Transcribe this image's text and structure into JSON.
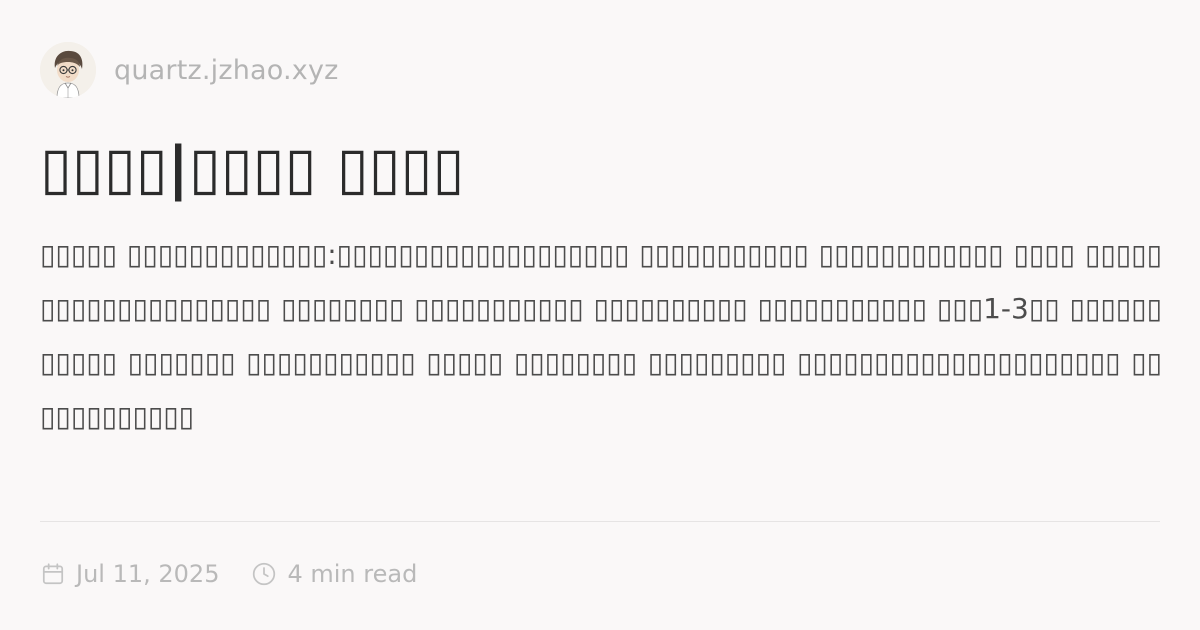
{
  "site": {
    "url": "quartz.jzhao.xyz",
    "avatar_icon": "avatar-sketch-person"
  },
  "post": {
    "title": "▯▯▯▯|▯▯▯▯ ▯▯▯▯",
    "excerpt": "▯▯▯▯▯ ▯▯▯▯▯▯▯▯▯▯▯▯▯:▯▯▯▯▯▯▯▯▯▯▯▯▯▯▯▯▯▯▯ ▯▯▯▯▯▯▯▯▯▯▯ ▯▯▯▯▯▯▯▯▯▯▯▯ ▯▯▯▯ ▯▯▯▯▯▯▯▯▯▯▯▯▯▯▯▯▯▯▯▯ ▯▯▯▯▯▯▯▯ ▯▯▯▯▯▯▯▯▯▯▯ ▯▯▯▯▯▯▯▯▯▯ ▯▯▯▯▯▯▯▯▯▯▯ ▯▯▯1-3▯▯ ▯▯▯▯▯▯▯▯▯▯▯ ▯▯▯▯▯▯▯ ▯▯▯▯▯▯▯▯▯▯▯ ▯▯▯▯▯ ▯▯▯▯▯▯▯▯ ▯▯▯▯▯▯▯▯▯ ▯▯▯▯▯▯▯▯▯▯▯▯▯▯▯▯▯▯▯▯▯ ▯▯▯▯▯▯▯▯▯▯▯▯"
  },
  "meta": {
    "date": "Jul 11, 2025",
    "date_icon": "calendar-icon",
    "reading_time": "4 min read",
    "time_icon": "clock-icon",
    "text_color": "#b9b9b9"
  }
}
